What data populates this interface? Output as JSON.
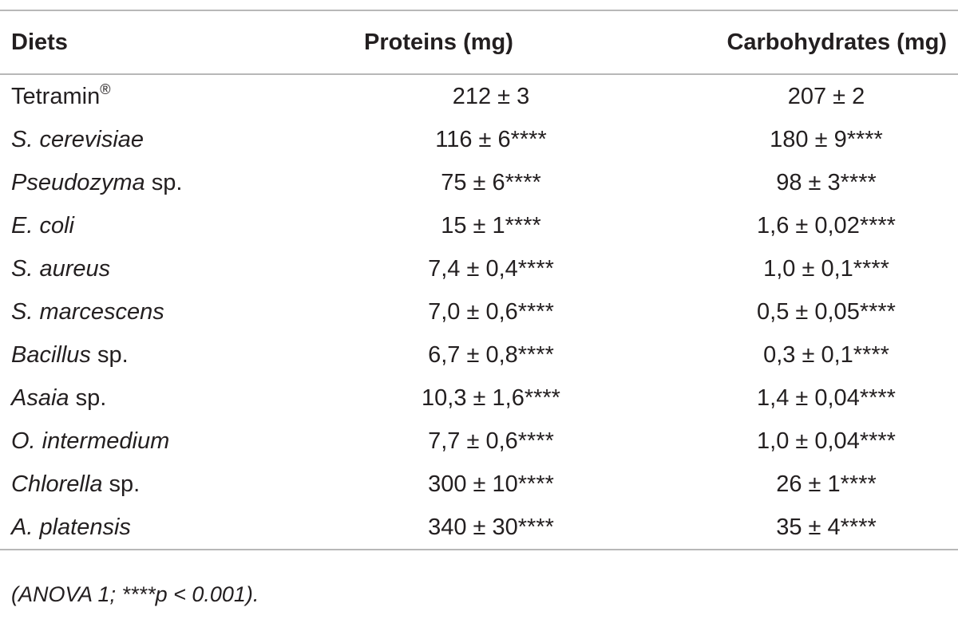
{
  "table": {
    "headers": [
      "Diets",
      "Proteins (mg)",
      "Carbohydrates (mg)"
    ],
    "rows": [
      {
        "diet_italic": "",
        "diet_plain": "Tetramin",
        "diet_sup": "®",
        "proteins": "212 ± 3",
        "carbohydrates": "207 ± 2"
      },
      {
        "diet_italic": "S. cerevisiae",
        "diet_plain": "",
        "diet_sup": "",
        "proteins": "116 ± 6****",
        "carbohydrates": "180 ± 9****"
      },
      {
        "diet_italic": "Pseudozyma",
        "diet_plain": " sp.",
        "diet_sup": "",
        "proteins": "75 ± 6****",
        "carbohydrates": "98 ± 3****"
      },
      {
        "diet_italic": "E. coli",
        "diet_plain": "",
        "diet_sup": "",
        "proteins": "15 ± 1****",
        "carbohydrates": "1,6 ± 0,02****"
      },
      {
        "diet_italic": "S. aureus",
        "diet_plain": "",
        "diet_sup": "",
        "proteins": "7,4 ± 0,4****",
        "carbohydrates": "1,0 ± 0,1****"
      },
      {
        "diet_italic": "S. marcescens",
        "diet_plain": "",
        "diet_sup": "",
        "proteins": "7,0 ± 0,6****",
        "carbohydrates": "0,5 ± 0,05****"
      },
      {
        "diet_italic": "Bacillus",
        "diet_plain": " sp.",
        "diet_sup": "",
        "proteins": "6,7 ± 0,8****",
        "carbohydrates": "0,3 ± 0,1****"
      },
      {
        "diet_italic": "Asaia",
        "diet_plain": " sp.",
        "diet_sup": "",
        "proteins": "10,3 ± 1,6****",
        "carbohydrates": "1,4 ± 0,04****"
      },
      {
        "diet_italic": "O. intermedium",
        "diet_plain": "",
        "diet_sup": "",
        "proteins": "7,7 ± 0,6****",
        "carbohydrates": "1,0 ± 0,04****"
      },
      {
        "diet_italic": "Chlorella",
        "diet_plain": " sp.",
        "diet_sup": "",
        "proteins": "300 ± 10****",
        "carbohydrates": "26 ± 1****"
      },
      {
        "diet_italic": "A. platensis",
        "diet_plain": "",
        "diet_sup": "",
        "proteins": "340 ± 30****",
        "carbohydrates": "35 ± 4****"
      }
    ]
  },
  "footnote": "(ANOVA 1; ****p < 0.001).",
  "colors": {
    "text": "#231f20",
    "rule": "#b8b8b8"
  }
}
